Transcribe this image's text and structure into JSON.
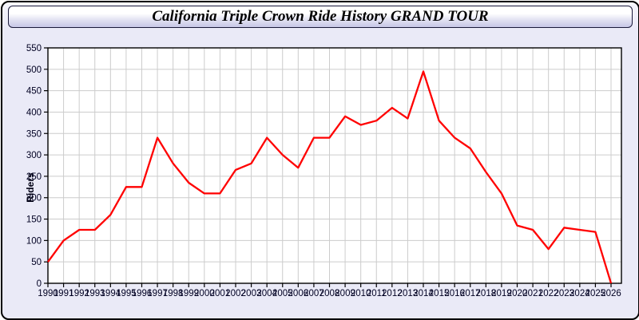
{
  "window": {
    "title": "California Triple Crown Ride History GRAND TOUR"
  },
  "chart_data": {
    "type": "line",
    "title": "California Triple Crown Ride History GRAND TOUR",
    "xlabel": "",
    "ylabel": "Riders",
    "ylim": [
      0,
      550
    ],
    "ytick_step": 50,
    "grid": true,
    "legend": "none",
    "line_color": "#ff0000",
    "x": [
      1990,
      1991,
      1992,
      1993,
      1994,
      1995,
      1996,
      1997,
      1998,
      1999,
      2000,
      2001,
      2002,
      2003,
      2004,
      2005,
      2006,
      2007,
      2008,
      2009,
      2010,
      2011,
      2012,
      2013,
      2014,
      2015,
      2016,
      2017,
      2018,
      2019,
      2020,
      2021,
      2022,
      2023,
      2024,
      2025,
      2026
    ],
    "series": [
      {
        "name": "Riders",
        "values": [
          50,
          100,
          125,
          125,
          160,
          225,
          225,
          340,
          280,
          235,
          210,
          210,
          265,
          280,
          340,
          300,
          270,
          340,
          340,
          390,
          370,
          380,
          410,
          385,
          495,
          380,
          340,
          315,
          260,
          210,
          135,
          125,
          80,
          130,
          125,
          120,
          0
        ]
      }
    ]
  },
  "colors": {
    "panel_background": "#eaeaf7",
    "titlebar_gradient_top": "#ffffff",
    "titlebar_gradient_bottom": "#c6c6e6",
    "frame_border": "#000000",
    "plot_background": "#ffffff",
    "grid_line": "#cccccc",
    "plot_border": "#000000",
    "series_line": "#ff0000",
    "tick_label_text": "#000022"
  }
}
